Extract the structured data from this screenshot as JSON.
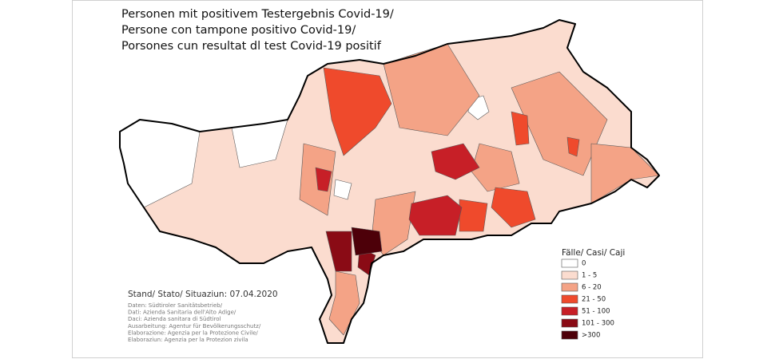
{
  "title_lines": [
    "Personen mit  positivem Testergebnis Covid-19/",
    "Persone con tampone  positivo Covid-19/",
    "Porsones cun resultat dl test Covid-19 positif"
  ],
  "legend": {
    "title": "Fälle/ Casi/ Caji",
    "items": [
      {
        "label": "0",
        "color": "#ffffff"
      },
      {
        "label": "1 - 5",
        "color": "#fbdccf"
      },
      {
        "label": "6 - 20",
        "color": "#f4a386"
      },
      {
        "label": "21 - 50",
        "color": "#ef4a2c"
      },
      {
        "label": "51 - 100",
        "color": "#c71f27"
      },
      {
        "label": "101 - 300",
        "color": "#8a0b15"
      },
      {
        "label": ">300",
        "color": "#4d0009"
      }
    ]
  },
  "stand": "Stand/ Stato/ Situaziun: 07.04.2020",
  "sources": [
    "Daten: Südtiroler Sanitätsbetrieb/",
    "Dati: Azienda Sanitaria dell'Alto Adige/",
    "Daci: Azienda sanitara di Südtirol",
    "Ausarbeitung: Agentur für Bevölkerungsschutz/",
    "Elaborazione: Agenzia per la Protezione Civile/",
    "Elaboraziun: Agenzia per la Protezion zivila"
  ]
}
